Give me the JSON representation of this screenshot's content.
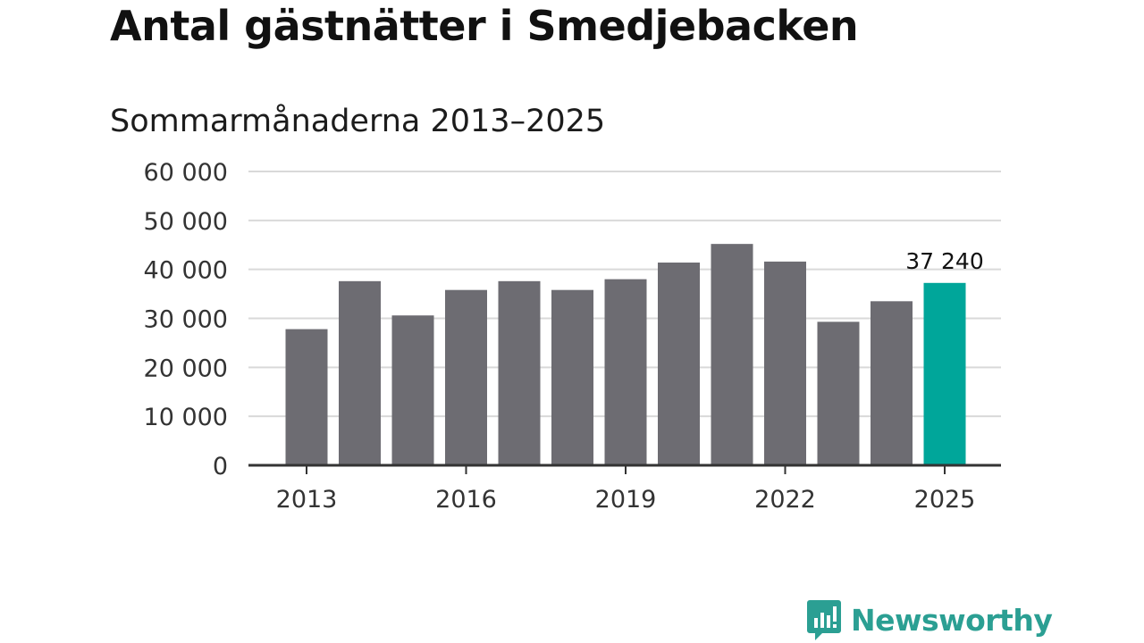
{
  "chart_data": {
    "type": "bar",
    "title": "Antal gästnätter i Smedjebacken",
    "subtitle": "Sommarmånaderna 2013–2025",
    "categories": [
      "2013",
      "2014",
      "2015",
      "2016",
      "2017",
      "2018",
      "2019",
      "2020",
      "2021",
      "2022",
      "2023",
      "2024",
      "2025"
    ],
    "values": [
      27800,
      37600,
      30600,
      35800,
      37600,
      35800,
      38000,
      41400,
      45200,
      41600,
      29300,
      33500,
      37240
    ],
    "x_tick_labels": [
      "2013",
      "2016",
      "2019",
      "2022",
      "2025"
    ],
    "y_tick_labels": [
      "0",
      "10 000",
      "20 000",
      "30 000",
      "40 000",
      "50 000",
      "60 000"
    ],
    "ylim": [
      0,
      60000
    ],
    "grid": true,
    "highlight": {
      "category": "2025",
      "label": "37 240"
    },
    "colors": {
      "bar": "#6d6c72",
      "highlight": "#00a69a",
      "grid": "#d9d9d9",
      "axis": "#333333"
    }
  },
  "brand": {
    "name": "Newsworthy",
    "icon": "newsworthy-logo-icon",
    "color": "#2b9f93"
  }
}
